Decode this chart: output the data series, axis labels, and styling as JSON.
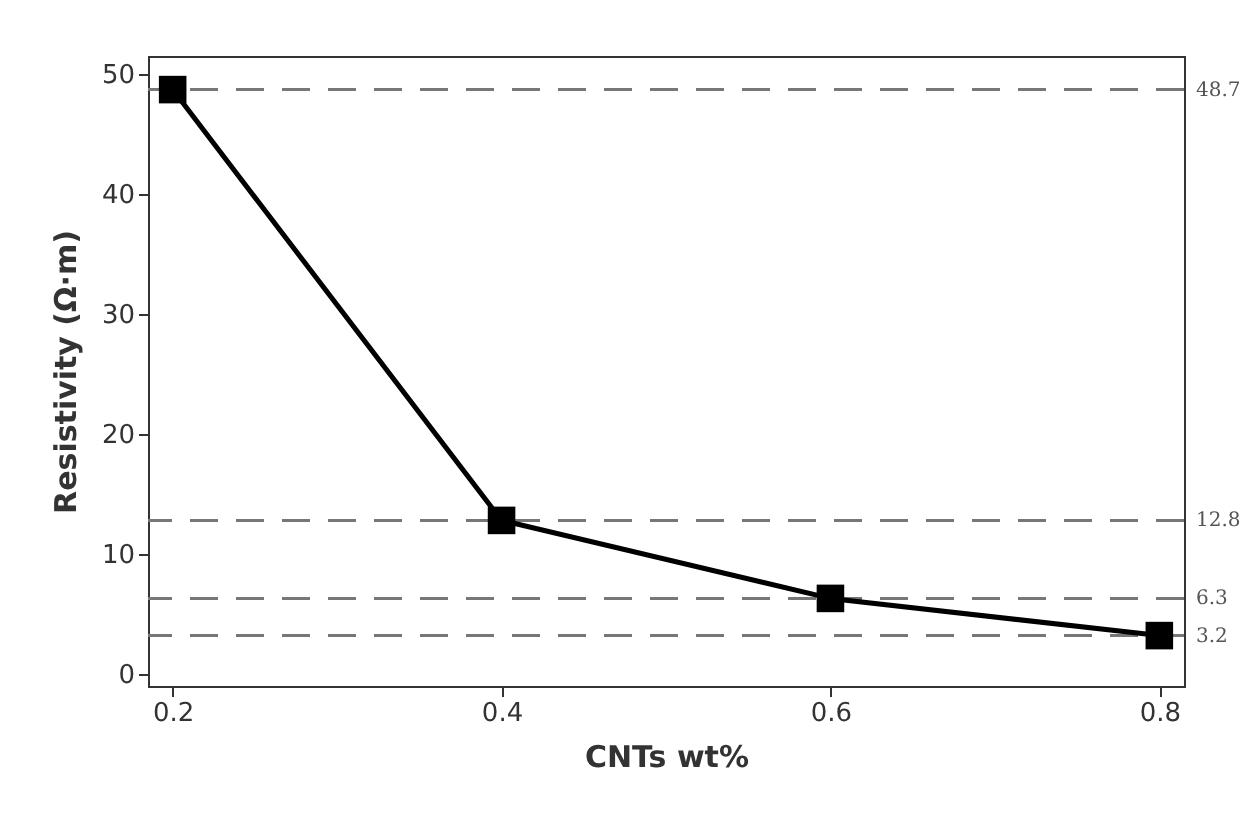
{
  "chart_data": {
    "type": "line",
    "xlabel": "CNTs wt%",
    "ylabel": "Resistivity (Ω·m)",
    "x": [
      0.2,
      0.4,
      0.6,
      0.8
    ],
    "series": [
      {
        "color": "#000000",
        "values": [
          48.7,
          12.8,
          6.3,
          3.2
        ]
      }
    ],
    "xlim": [
      0.185,
      0.815
    ],
    "xticks": [
      0.2,
      0.4,
      0.6,
      0.8
    ],
    "ylim": [
      -1,
      51.5
    ],
    "yticks": [
      0,
      10,
      20,
      30,
      40,
      50
    ],
    "marker": "square",
    "line_style": "solid",
    "ref_lines": [
      {
        "axis": "y",
        "value": 48.7,
        "label": "48.7",
        "color": "#777777",
        "line_style": "dashed"
      },
      {
        "axis": "y",
        "value": 12.8,
        "label": "12.8",
        "color": "#777777",
        "line_style": "dashed"
      },
      {
        "axis": "y",
        "value": 6.3,
        "label": "6.3",
        "color": "#777777",
        "line_style": "dashed"
      },
      {
        "axis": "y",
        "value": 3.2,
        "label": "3.2",
        "color": "#777777",
        "line_style": "dashed"
      }
    ]
  }
}
